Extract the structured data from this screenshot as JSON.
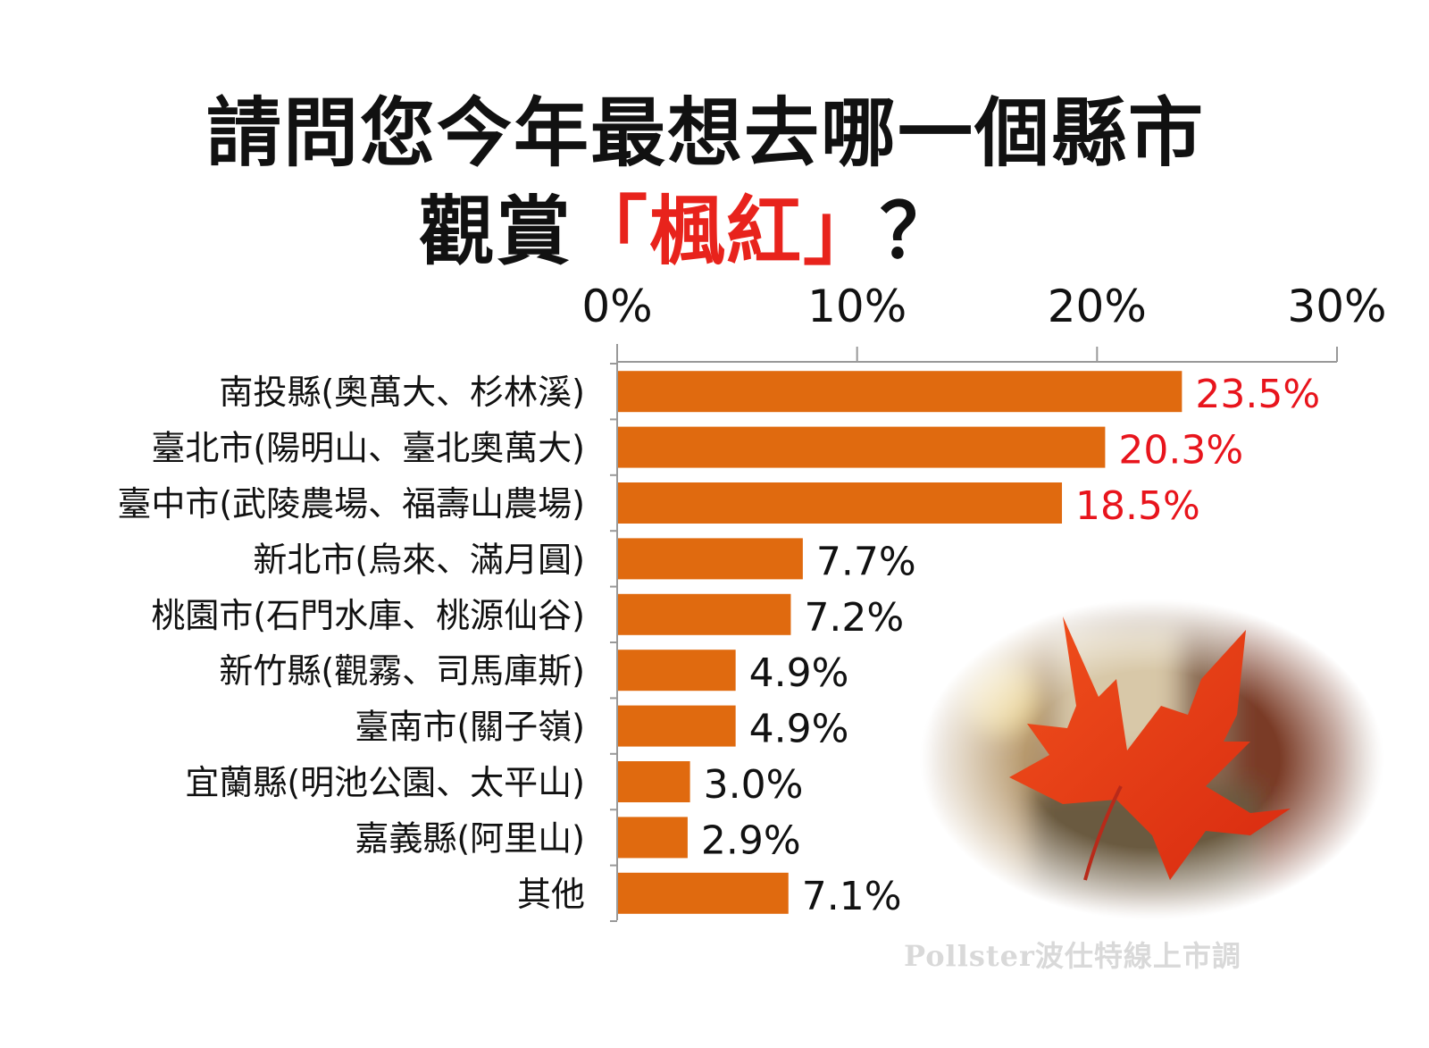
{
  "title": {
    "line1": "請問您今年最想去哪一個縣市",
    "line2_prefix": "觀賞",
    "line2_highlight": "「楓紅」",
    "line2_suffix": "？"
  },
  "watermark": "Pollster波仕特線上市調",
  "colors": {
    "bar": "#e06a0f",
    "highlight_label": "#e8141c",
    "label": "#111111"
  },
  "chart_data": {
    "type": "bar",
    "orientation": "horizontal",
    "title": "請問您今年最想去哪一個縣市觀賞「楓紅」？",
    "categories": [
      "南投縣(奧萬大、杉林溪)",
      "臺北市(陽明山、臺北奧萬大)",
      "臺中市(武陵農場、福壽山農場)",
      "新北市(烏來、滿月圓)",
      "桃園市(石門水庫、桃源仙谷)",
      "新竹縣(觀霧、司馬庫斯)",
      "臺南市(關子嶺)",
      "宜蘭縣(明池公園、太平山)",
      "嘉義縣(阿里山)",
      "其他"
    ],
    "values": [
      23.5,
      20.3,
      18.5,
      7.7,
      7.2,
      4.9,
      4.9,
      3.0,
      2.9,
      7.1
    ],
    "value_labels": [
      "23.5%",
      "20.3%",
      "18.5%",
      "7.7%",
      "7.2%",
      "4.9%",
      "4.9%",
      "3.0%",
      "2.9%",
      "7.1%"
    ],
    "highlighted": [
      true,
      true,
      true,
      false,
      false,
      false,
      false,
      false,
      false,
      false
    ],
    "xlim": [
      0,
      30
    ],
    "xticks": [
      0,
      10,
      20,
      30
    ],
    "xtick_labels": [
      "0%",
      "10%",
      "20%",
      "30%"
    ],
    "xaxis_position": "top",
    "grid": false,
    "xlabel": "",
    "ylabel": ""
  }
}
